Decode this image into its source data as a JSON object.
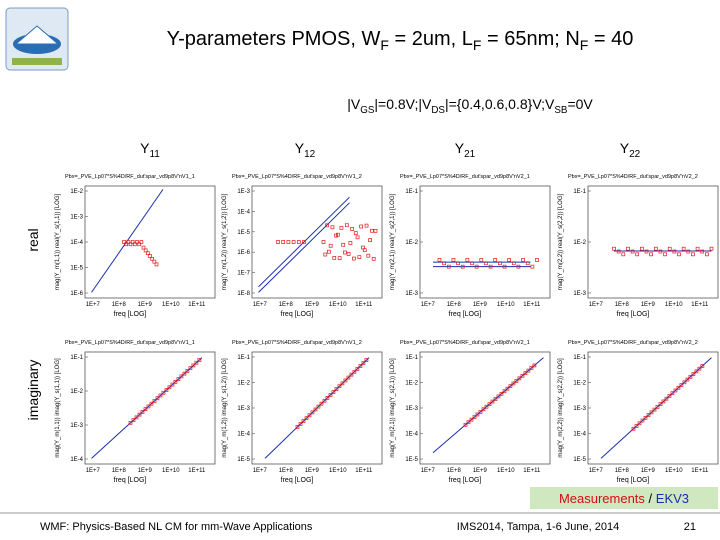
{
  "header": {
    "title": [
      "Y-parameters PMOS, W",
      "F",
      " = 2um, L",
      "F",
      " = 65nm; N",
      "F",
      " = 40"
    ],
    "subtitle": [
      "|V",
      "GS",
      "|=0.8V;|V",
      "DS",
      "|={0.4,0.6,0.8}V;V",
      "SB",
      "=0V"
    ]
  },
  "columns": [
    [
      "Y",
      "11"
    ],
    [
      "Y",
      "12"
    ],
    [
      "Y",
      "21"
    ],
    [
      "Y",
      "22"
    ]
  ],
  "rows": [
    "real",
    "imaginary"
  ],
  "panels": [
    {
      "caption": "Pbx=_PVE_Lp07*S%4D/RF_dut'spar_vd9p8V'nV1_1",
      "ylabel": "mag(Y_m(1,1)) real(Y_s(1,1)) [LOG]",
      "xlabel": "freq [LOG]",
      "xticks": [
        "1E+7",
        "1E+8",
        "1E+9",
        "1E+10",
        "1E+11"
      ],
      "yticks": [
        "1E-2",
        "1E-3",
        "1E-4",
        "1E-5",
        "1E-6"
      ]
    },
    {
      "caption": "Pbx=_PVE_Lp07*S%4D/RF_dut'spar_vd9p8V'nV1_2",
      "ylabel": "mag(Y_m(1,2)) real(Y_s(1,2)) [LOG]",
      "xlabel": "freq [LOG]",
      "xticks": [
        "1E+7",
        "1E+8",
        "1E+9",
        "1E+10",
        "1E+11"
      ],
      "yticks": [
        "1E-3",
        "1E-4",
        "1E-5",
        "1E-6",
        "1E-7",
        "1E-8"
      ]
    },
    {
      "caption": "Pbx=_PVE_Lp07*S%4D/RF_dut'spar_vd9p8V'nV2_1",
      "ylabel": "mag(Y_m(2,1)) real(Y_s(2,1)) [LOG]",
      "xlabel": "freq [LOG]",
      "xticks": [
        "1E+7",
        "1E+8",
        "1E+9",
        "1E+10",
        "1E+11"
      ],
      "yticks": [
        "1E-1",
        "1E-2",
        "1E-3"
      ]
    },
    {
      "caption": "Pbx=_PVE_Lp07*S%4D/RF_dut'spar_vd9p8V'nV2_2",
      "ylabel": "mag(Y_m(2,2)) real(Y_s(2,2)) [LOG]",
      "xlabel": "freq [LOG]",
      "xticks": [
        "1E+7",
        "1E+8",
        "1E+9",
        "1E+10",
        "1E+11"
      ],
      "yticks": [
        "1E-1",
        "1E-2",
        "1E-3"
      ]
    },
    {
      "caption": "Pbx=_PVE_Lp07*S%4D/RF_dut'spar_vd9p8V'nV1_1",
      "ylabel": "mag(Y_m(1,1)) imag(Y_s(1,1)) [LOG]",
      "xlabel": "freq [LOG]",
      "xticks": [
        "1E+7",
        "1E+8",
        "1E+9",
        "1E+10",
        "1E+11"
      ],
      "yticks": [
        "1E-1",
        "1E-2",
        "1E-3",
        "1E-4"
      ]
    },
    {
      "caption": "Pbx=_PVE_Lp07*S%4D/RF_dut'spar_vd9p8V'nV1_2",
      "ylabel": "mag(Y_m(1,2)) imag(Y_s(1,2)) [LOG]",
      "xlabel": "freq [LOG]",
      "xticks": [
        "1E+7",
        "1E+8",
        "1E+9",
        "1E+10",
        "1E+11"
      ],
      "yticks": [
        "1E-1",
        "1E-2",
        "1E-3",
        "1E-4",
        "1E-5"
      ]
    },
    {
      "caption": "Pbx=_PVE_Lp07*S%4D/RF_dut'spar_vd9p8V'nV2_1",
      "ylabel": "mag(Y_m(2,1)) imag(Y_s(2,1)) [LOG]",
      "xlabel": "freq [LOG]",
      "xticks": [
        "1E+7",
        "1E+8",
        "1E+9",
        "1E+10",
        "1E+11"
      ],
      "yticks": [
        "1E-1",
        "1E-2",
        "1E-3",
        "1E-4",
        "1E-5"
      ]
    },
    {
      "caption": "Pbx=_PVE_Lp07*S%4D/RF_dut'spar_vd9p8V'nV2_2",
      "ylabel": "mag(Y_m(2,2)) imag(Y_s(2,2)) [LOG]",
      "xlabel": "freq [LOG]",
      "xticks": [
        "1E+7",
        "1E+8",
        "1E+9",
        "1E+10",
        "1E+11"
      ],
      "yticks": [
        "1E-1",
        "1E-2",
        "1E-3",
        "1E-4",
        "1E-5"
      ]
    }
  ],
  "legend": [
    "Measurements",
    "/",
    "EKV3"
  ],
  "footer": {
    "left": "WMF: Physics-Based NL CM for mm-Wave Applications",
    "center": "IMS2014, Tampa, 1-6 June, 2014",
    "page": "21"
  }
}
